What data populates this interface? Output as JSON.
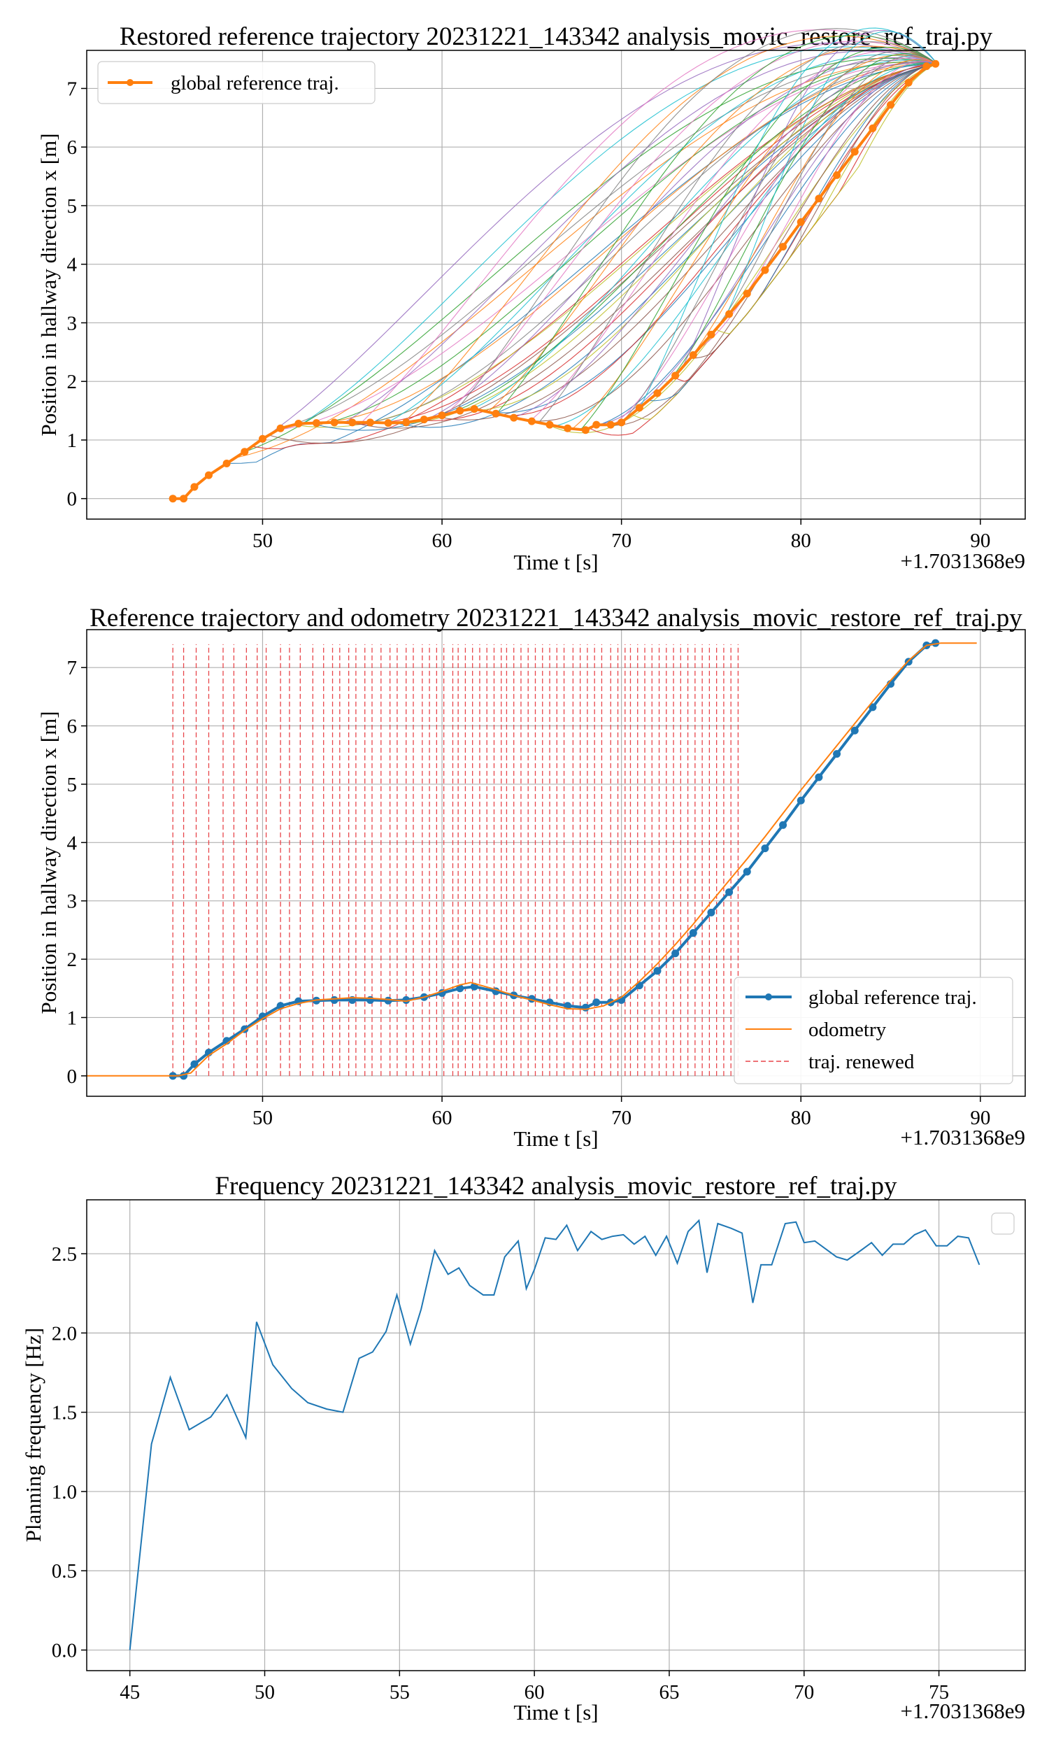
{
  "chart_data": [
    {
      "type": "line",
      "title": "Restored reference trajectory 20231221_143342 analysis_movic_restore_ref_traj.py",
      "xlabel": "Time t [s]",
      "ylabel": "Position in hallway direction x [m]",
      "offset_label": "+1.7031368e9",
      "xlim": [
        40.2,
        92.5
      ],
      "ylim": [
        -0.35,
        7.65
      ],
      "xticks": [
        50,
        60,
        70,
        80,
        90
      ],
      "yticks": [
        0,
        1,
        2,
        3,
        4,
        5,
        6,
        7
      ],
      "grid": true,
      "legend": "top-left",
      "colors": {
        "reference": "#ff7f0e"
      },
      "legend_entries": [
        "global reference traj."
      ],
      "reference": {
        "name": "global reference traj.",
        "x": [
          45.0,
          45.6,
          46.2,
          47.0,
          48.0,
          49.0,
          50.0,
          51.0,
          52.0,
          53.0,
          54.0,
          55.0,
          56.0,
          57.0,
          58.0,
          59.0,
          60.0,
          61.0,
          61.8,
          63.0,
          64.0,
          65.0,
          66.0,
          67.0,
          68.0,
          68.6,
          69.4,
          70.0,
          71.0,
          72.0,
          73.0,
          74.0,
          75.0,
          76.0,
          77.0,
          78.0,
          79.0,
          80.0,
          81.0,
          82.0,
          83.0,
          84.0,
          85.0,
          86.0,
          87.0,
          87.5
        ],
        "y": [
          0,
          0,
          0.2,
          0.4,
          0.6,
          0.8,
          1.02,
          1.2,
          1.28,
          1.29,
          1.3,
          1.3,
          1.3,
          1.29,
          1.3,
          1.35,
          1.42,
          1.5,
          1.53,
          1.45,
          1.38,
          1.32,
          1.26,
          1.2,
          1.17,
          1.26,
          1.26,
          1.3,
          1.55,
          1.8,
          2.1,
          2.45,
          2.8,
          3.15,
          3.5,
          3.9,
          4.3,
          4.72,
          5.12,
          5.52,
          5.92,
          6.32,
          6.72,
          7.1,
          7.38,
          7.42
        ]
      },
      "candidates_count": 60
    },
    {
      "type": "line",
      "title": "Reference trajectory and odometry 20231221_143342 analysis_movic_restore_ref_traj.py",
      "xlabel": "Time t [s]",
      "ylabel": "Position in hallway direction x [m]",
      "offset_label": "+1.7031368e9",
      "xlim": [
        40.2,
        92.5
      ],
      "ylim": [
        -0.35,
        7.65
      ],
      "xticks": [
        50,
        60,
        70,
        80,
        90
      ],
      "yticks": [
        0,
        1,
        2,
        3,
        4,
        5,
        6,
        7
      ],
      "grid": true,
      "legend": "lower-right",
      "colors": {
        "reference": "#1f77b4",
        "odometry": "#ff7f0e",
        "renewed": "#e8454a"
      },
      "series": [
        {
          "name": "global reference traj.",
          "x": [
            45.0,
            45.6,
            46.2,
            47.0,
            48.0,
            49.0,
            50.0,
            51.0,
            52.0,
            53.0,
            54.0,
            55.0,
            56.0,
            57.0,
            58.0,
            59.0,
            60.0,
            61.0,
            61.8,
            63.0,
            64.0,
            65.0,
            66.0,
            67.0,
            68.0,
            68.6,
            69.4,
            70.0,
            71.0,
            72.0,
            73.0,
            74.0,
            75.0,
            76.0,
            77.0,
            78.0,
            79.0,
            80.0,
            81.0,
            82.0,
            83.0,
            84.0,
            85.0,
            86.0,
            87.0,
            87.5
          ],
          "y": [
            0,
            0,
            0.2,
            0.4,
            0.6,
            0.8,
            1.02,
            1.2,
            1.28,
            1.29,
            1.3,
            1.3,
            1.3,
            1.29,
            1.3,
            1.35,
            1.42,
            1.5,
            1.53,
            1.45,
            1.38,
            1.32,
            1.26,
            1.2,
            1.17,
            1.26,
            1.26,
            1.3,
            1.55,
            1.8,
            2.1,
            2.45,
            2.8,
            3.15,
            3.5,
            3.9,
            4.3,
            4.72,
            5.12,
            5.52,
            5.92,
            6.32,
            6.72,
            7.1,
            7.38,
            7.42
          ]
        },
        {
          "name": "odometry",
          "x": [
            40.2,
            45.3,
            46.0,
            47.0,
            48.0,
            49.0,
            50.0,
            51.0,
            52.0,
            53.0,
            54.0,
            55.0,
            56.0,
            57.0,
            58.0,
            59.0,
            60.0,
            61.0,
            61.6,
            63.0,
            64.0,
            65.0,
            66.0,
            67.0,
            68.0,
            69.0,
            70.0,
            71.0,
            72.0,
            73.0,
            74.0,
            75.0,
            76.0,
            77.0,
            78.0,
            79.0,
            80.0,
            81.0,
            82.0,
            83.0,
            84.0,
            85.0,
            86.0,
            87.0,
            87.8,
            89.8
          ],
          "y": [
            0,
            0,
            0.05,
            0.35,
            0.55,
            0.78,
            0.98,
            1.15,
            1.24,
            1.3,
            1.32,
            1.34,
            1.33,
            1.31,
            1.28,
            1.35,
            1.45,
            1.56,
            1.6,
            1.48,
            1.38,
            1.3,
            1.22,
            1.15,
            1.14,
            1.2,
            1.35,
            1.62,
            1.92,
            2.25,
            2.6,
            2.98,
            3.35,
            3.72,
            4.1,
            4.5,
            4.9,
            5.28,
            5.66,
            6.04,
            6.42,
            6.78,
            7.12,
            7.38,
            7.42,
            7.42
          ]
        }
      ],
      "renewed": {
        "name": "traj. renewed",
        "x": [
          45.0,
          45.6,
          46.3,
          47.0,
          47.8,
          48.4,
          49.1,
          49.7,
          50.2,
          51.0,
          51.5,
          52.1,
          52.8,
          53.4,
          53.9,
          54.3,
          54.8,
          55.2,
          55.7,
          56.1,
          56.6,
          57.1,
          57.5,
          58.0,
          58.4,
          58.9,
          59.3,
          59.7,
          60.1,
          60.6,
          60.9,
          61.3,
          61.7,
          62.1,
          62.5,
          62.9,
          63.3,
          63.6,
          64.0,
          64.4,
          64.8,
          65.2,
          65.6,
          66.0,
          66.4,
          66.8,
          67.3,
          67.7,
          68.1,
          68.5,
          68.9,
          69.4,
          69.8,
          70.2,
          70.5,
          70.9,
          71.3,
          71.7,
          72.1,
          72.5,
          72.9,
          73.3,
          73.7,
          74.1,
          74.5,
          74.9,
          75.3,
          75.7,
          76.1,
          76.5
        ],
        "top": 7.4
      }
    },
    {
      "type": "line",
      "title": "Frequency 20231221_143342 analysis_movic_restore_ref_traj.py",
      "xlabel": "Time t [s]",
      "ylabel": "Planning frequency [Hz]",
      "offset_label": "+1.7031368e9",
      "xlim": [
        43.4,
        78.2
      ],
      "ylim": [
        -0.13,
        2.84
      ],
      "xticks": [
        45,
        50,
        55,
        60,
        65,
        70,
        75
      ],
      "yticks": [
        0.0,
        0.5,
        1.0,
        1.5,
        2.0,
        2.5
      ],
      "grid": true,
      "legend": "top-right",
      "colors": {
        "frequency": "#1f77b4"
      },
      "series": [
        {
          "x": [
            45.0,
            45.8,
            46.5,
            47.2,
            48.0,
            48.6,
            49.3,
            49.7,
            50.3,
            51.0,
            51.6,
            52.3,
            52.9,
            53.5,
            54.0,
            54.5,
            54.9,
            55.4,
            55.8,
            56.3,
            56.8,
            57.2,
            57.6,
            58.1,
            58.5,
            58.9,
            59.4,
            59.7,
            60.0,
            60.4,
            60.8,
            61.2,
            61.6,
            62.1,
            62.5,
            62.9,
            63.3,
            63.7,
            64.1,
            64.5,
            64.9,
            65.3,
            65.7,
            66.1,
            66.4,
            66.8,
            67.3,
            67.7,
            68.1,
            68.4,
            68.8,
            69.3,
            69.7,
            70.0,
            70.4,
            70.8,
            71.2,
            71.6,
            72.1,
            72.5,
            72.9,
            73.3,
            73.7,
            74.1,
            74.5,
            74.9,
            75.3,
            75.7,
            76.1,
            76.5
          ],
          "y": [
            0,
            1.3,
            1.72,
            1.39,
            1.47,
            1.61,
            1.34,
            2.07,
            1.8,
            1.65,
            1.56,
            1.52,
            1.5,
            1.84,
            1.88,
            2.01,
            2.24,
            1.93,
            2.15,
            2.52,
            2.37,
            2.41,
            2.3,
            2.24,
            2.24,
            2.48,
            2.58,
            2.28,
            2.4,
            2.6,
            2.59,
            2.68,
            2.52,
            2.64,
            2.59,
            2.61,
            2.62,
            2.56,
            2.61,
            2.49,
            2.61,
            2.44,
            2.64,
            2.71,
            2.38,
            2.69,
            2.66,
            2.63,
            2.19,
            2.43,
            2.43,
            2.69,
            2.7,
            2.57,
            2.58,
            2.53,
            2.48,
            2.46,
            2.52,
            2.57,
            2.49,
            2.56,
            2.56,
            2.62,
            2.65,
            2.55,
            2.55,
            2.61,
            2.6,
            2.43
          ]
        }
      ]
    }
  ]
}
